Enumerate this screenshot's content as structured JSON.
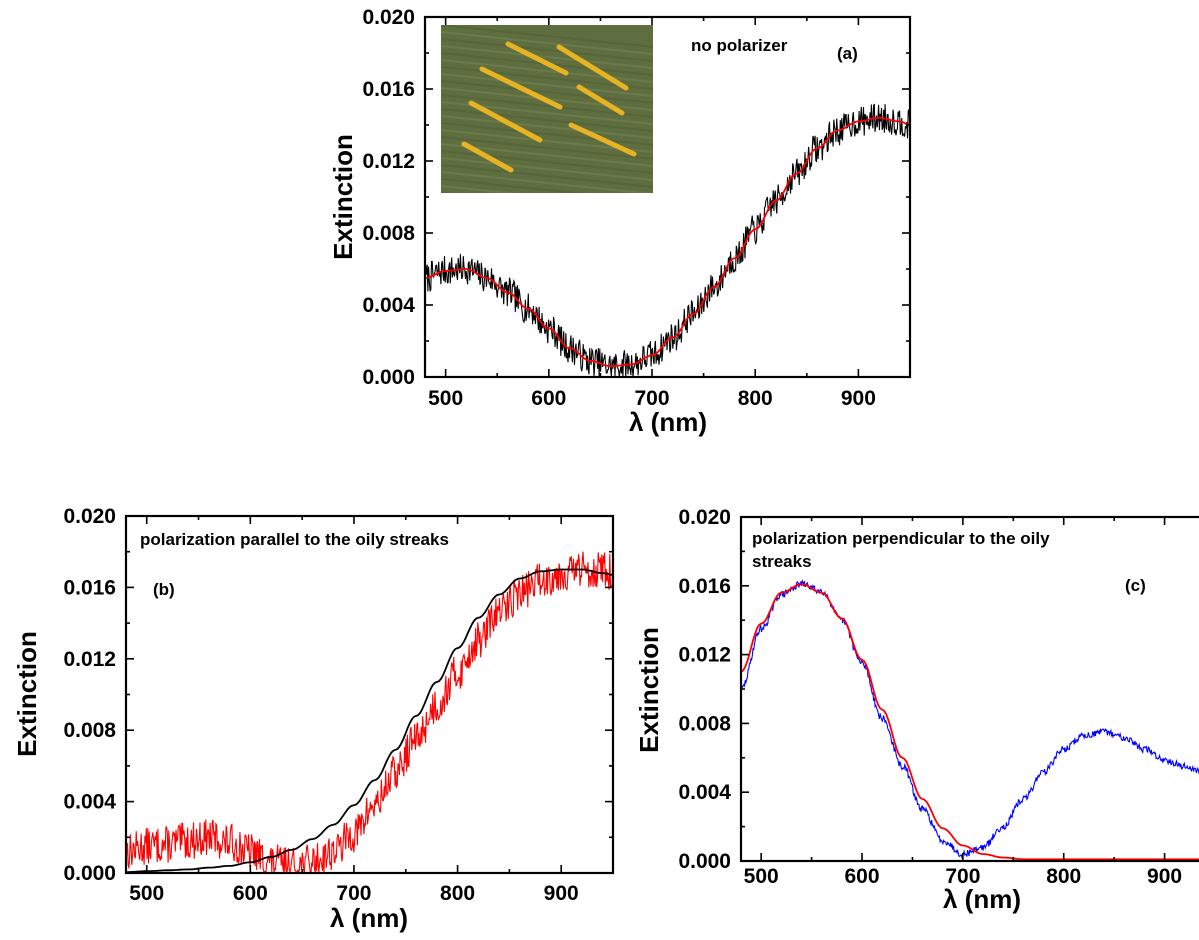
{
  "chart_data": [
    {
      "panel": "a",
      "type": "line",
      "xlabel": "λ (nm)",
      "ylabel": "Extinction",
      "xlim": [
        480,
        950
      ],
      "ylim": [
        0,
        0.02
      ],
      "xticks": [
        "500",
        "600",
        "700",
        "800",
        "900"
      ],
      "yticks": [
        "0.000",
        "0.004",
        "0.008",
        "0.012",
        "0.016",
        "0.020"
      ],
      "annotations": [
        "no polarizer",
        "(a)"
      ],
      "inset": "optical micrograph of gold nanorods on an oily-streaked substrate",
      "series": [
        {
          "color": "#000000",
          "style": "noisy-measured",
          "x": [
            480,
            500,
            520,
            540,
            560,
            580,
            600,
            620,
            640,
            660,
            680,
            700,
            720,
            740,
            760,
            780,
            800,
            820,
            840,
            860,
            880,
            900,
            920,
            940,
            950
          ],
          "y": [
            0.0055,
            0.0059,
            0.006,
            0.0055,
            0.0047,
            0.0038,
            0.0027,
            0.0016,
            0.0009,
            0.0006,
            0.0007,
            0.0012,
            0.0022,
            0.0035,
            0.005,
            0.0066,
            0.0082,
            0.0098,
            0.0113,
            0.0127,
            0.0137,
            0.0142,
            0.0144,
            0.0142,
            0.014
          ]
        },
        {
          "color": "#ff0000",
          "style": "fit",
          "x": [
            480,
            500,
            520,
            540,
            560,
            580,
            600,
            620,
            640,
            660,
            680,
            700,
            720,
            740,
            760,
            780,
            800,
            820,
            840,
            860,
            880,
            900,
            920,
            940,
            950
          ],
          "y": [
            0.0055,
            0.0059,
            0.006,
            0.0055,
            0.0047,
            0.0038,
            0.0027,
            0.0016,
            0.0009,
            0.0006,
            0.0007,
            0.0012,
            0.0022,
            0.0035,
            0.005,
            0.0066,
            0.0082,
            0.0098,
            0.0113,
            0.0127,
            0.0137,
            0.0142,
            0.0144,
            0.0142,
            0.014
          ]
        }
      ]
    },
    {
      "panel": "b",
      "type": "line",
      "xlabel": "λ (nm)",
      "ylabel": "Extinction",
      "xlim": [
        480,
        950
      ],
      "ylim": [
        0,
        0.02
      ],
      "xticks": [
        "500",
        "600",
        "700",
        "800",
        "900"
      ],
      "yticks": [
        "0.000",
        "0.004",
        "0.008",
        "0.012",
        "0.016",
        "0.020"
      ],
      "annotations": [
        "polarization parallel to the oily streaks",
        "(b)"
      ],
      "series": [
        {
          "color": "#ff0000",
          "style": "noisy-measured",
          "x": [
            480,
            500,
            520,
            540,
            560,
            580,
            600,
            620,
            640,
            660,
            680,
            700,
            720,
            740,
            760,
            780,
            800,
            820,
            840,
            860,
            880,
            900,
            920,
            940,
            950
          ],
          "y": [
            0.0012,
            0.0015,
            0.0016,
            0.0018,
            0.002,
            0.0017,
            0.0012,
            0.0006,
            0.0004,
            0.0006,
            0.0012,
            0.0022,
            0.0038,
            0.0056,
            0.0075,
            0.0094,
            0.0112,
            0.013,
            0.0146,
            0.0157,
            0.0164,
            0.0168,
            0.017,
            0.017,
            0.0168
          ]
        },
        {
          "color": "#000000",
          "style": "fit",
          "x": [
            480,
            500,
            520,
            540,
            560,
            580,
            600,
            620,
            640,
            660,
            680,
            700,
            720,
            740,
            760,
            780,
            800,
            820,
            840,
            860,
            880,
            900,
            920,
            940,
            950
          ],
          "y": [
            5e-05,
            0.0001,
            0.00015,
            0.0002,
            0.0003,
            0.0004,
            0.0006,
            0.0009,
            0.0013,
            0.0019,
            0.0027,
            0.0038,
            0.0052,
            0.0069,
            0.0088,
            0.0107,
            0.0126,
            0.0143,
            0.0156,
            0.0165,
            0.0169,
            0.017,
            0.017,
            0.0168,
            0.0167
          ]
        }
      ]
    },
    {
      "panel": "c",
      "type": "line",
      "xlabel": "λ (nm)",
      "ylabel": "Extinction",
      "xlim": [
        480,
        950
      ],
      "ylim": [
        0,
        0.02
      ],
      "xticks": [
        "500",
        "600",
        "700",
        "800",
        "900"
      ],
      "yticks": [
        "0.000",
        "0.004",
        "0.008",
        "0.012",
        "0.016",
        "0.020"
      ],
      "annotations": [
        "polarization perpendicular to the oily",
        "streaks",
        "(c)"
      ],
      "series": [
        {
          "color": "#0000ff",
          "style": "noisy-measured",
          "x": [
            480,
            500,
            520,
            540,
            560,
            580,
            600,
            620,
            640,
            660,
            680,
            700,
            720,
            740,
            760,
            780,
            800,
            820,
            840,
            860,
            880,
            900,
            920,
            940,
            950
          ],
          "y": [
            0.01,
            0.0135,
            0.0155,
            0.0161,
            0.0157,
            0.014,
            0.0115,
            0.0083,
            0.0055,
            0.003,
            0.0012,
            0.0004,
            0.0008,
            0.002,
            0.0036,
            0.0052,
            0.0065,
            0.0073,
            0.0075,
            0.0072,
            0.0065,
            0.0059,
            0.0055,
            0.0051,
            0.005
          ]
        },
        {
          "color": "#ff0000",
          "style": "fit",
          "x": [
            480,
            500,
            520,
            540,
            560,
            580,
            600,
            620,
            640,
            660,
            680,
            700,
            720,
            740,
            760,
            780,
            800,
            820,
            840,
            860,
            880,
            900,
            920,
            940,
            950
          ],
          "y": [
            0.011,
            0.0138,
            0.0156,
            0.0161,
            0.0156,
            0.0141,
            0.0117,
            0.0088,
            0.006,
            0.0036,
            0.0019,
            0.0009,
            0.0004,
            0.0002,
            0.0001,
            0.0001,
            0.0001,
            0.0001,
            0.0001,
            0.0001,
            0.0001,
            0.0001,
            0.0001,
            0.0001,
            0.0001
          ]
        }
      ]
    }
  ]
}
